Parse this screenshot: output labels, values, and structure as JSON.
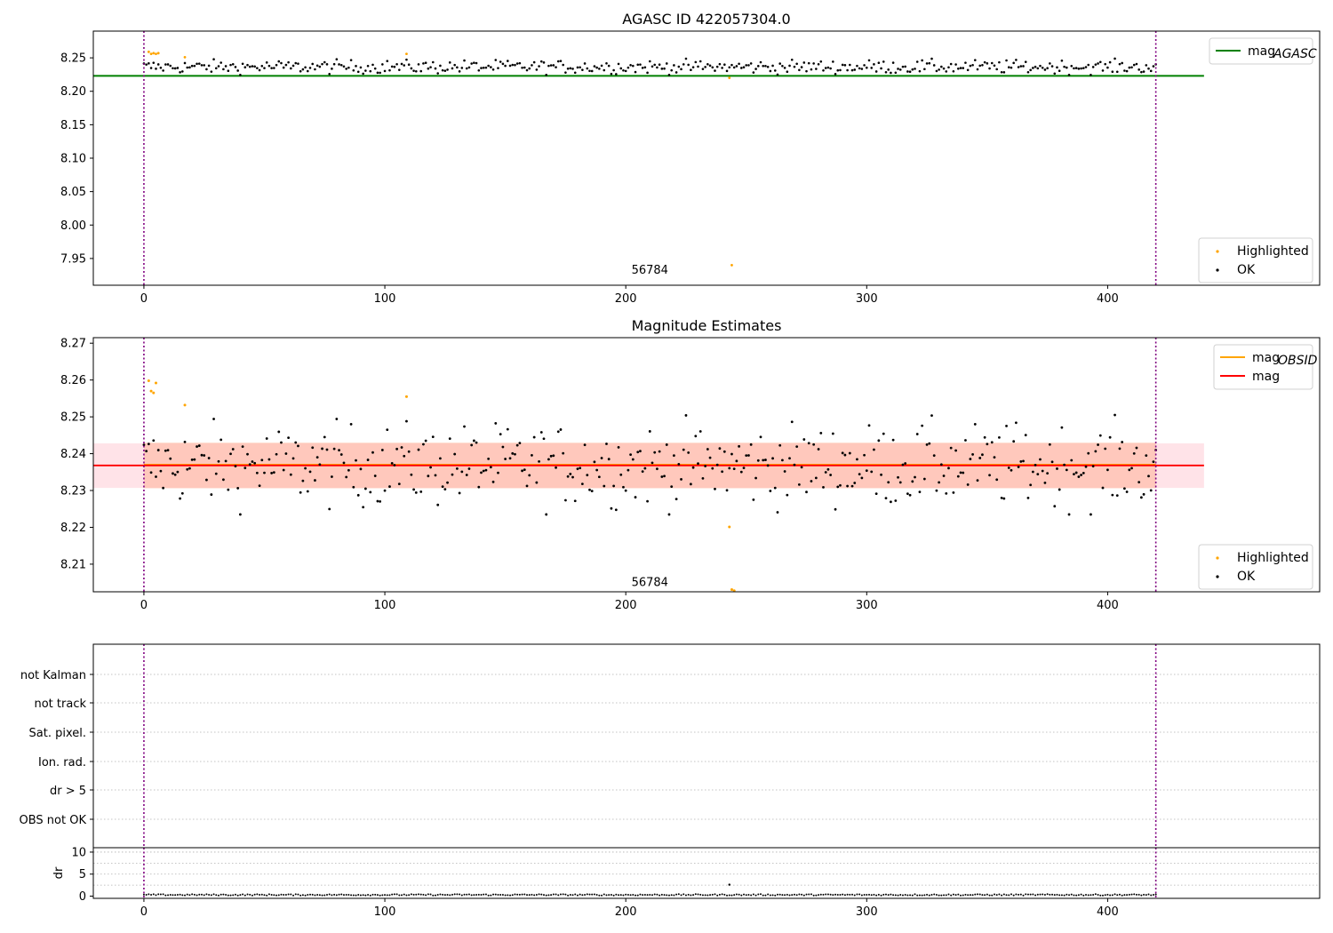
{
  "chart_data": [
    {
      "type": "scatter",
      "title": "AGASC ID 422057304.0",
      "xlim": [
        -21,
        488
      ],
      "ylim": [
        7.91,
        8.29
      ],
      "xticks": [
        0,
        100,
        200,
        300,
        400
      ],
      "xtick_labels": [
        "0",
        "100",
        "200",
        "300",
        "400"
      ],
      "yticks": [
        7.95,
        8.0,
        8.05,
        8.1,
        8.15,
        8.2,
        8.25
      ],
      "ytick_labels": [
        "7.95",
        "8.00",
        "8.05",
        "8.10",
        "8.15",
        "8.20",
        "8.25"
      ],
      "mag_agasc": 8.223,
      "vlines": [
        0,
        420
      ],
      "annotation": {
        "text": "56784",
        "x": 210,
        "y": 7.93
      },
      "highlighted": [
        [
          2,
          8.259
        ],
        [
          3,
          8.256
        ],
        [
          4,
          8.257
        ],
        [
          5,
          8.256
        ],
        [
          6,
          8.257
        ],
        [
          17,
          8.251
        ],
        [
          109,
          8.256
        ],
        [
          243,
          8.22
        ],
        [
          244,
          7.94
        ]
      ],
      "legends": [
        {
          "position": "upper right",
          "entries": [
            {
              "label": "mag",
              "sub": "AGASC",
              "color": "#008000",
              "kind": "line"
            }
          ]
        },
        {
          "position": "lower right",
          "entries": [
            {
              "label": "Highlighted",
              "color": "#ffa500",
              "kind": "marker"
            },
            {
              "label": "OK",
              "color": "#000000",
              "kind": "marker"
            }
          ]
        }
      ]
    },
    {
      "type": "scatter",
      "title": "Magnitude Estimates",
      "xlim": [
        -21,
        488
      ],
      "ylim": [
        8.2025,
        8.2715
      ],
      "xticks": [
        0,
        100,
        200,
        300,
        400
      ],
      "xtick_labels": [
        "0",
        "100",
        "200",
        "300",
        "400"
      ],
      "yticks": [
        8.21,
        8.22,
        8.23,
        8.24,
        8.25,
        8.26,
        8.27
      ],
      "ytick_labels": [
        "8.21",
        "8.22",
        "8.23",
        "8.24",
        "8.25",
        "8.26",
        "8.27"
      ],
      "mag": 8.2368,
      "mag_band": [
        8.2307,
        8.2428
      ],
      "mag_obsid": 8.237,
      "vlines": [
        0,
        420
      ],
      "annotation": {
        "text": "56784",
        "x": 210,
        "y": 8.2045
      },
      "highlighted": [
        [
          2,
          8.2598
        ],
        [
          3,
          8.257
        ],
        [
          4,
          8.2565
        ],
        [
          5,
          8.2592
        ],
        [
          17,
          8.2532
        ],
        [
          109,
          8.2555
        ],
        [
          243,
          8.2201
        ],
        [
          244,
          8.2031
        ],
        [
          245,
          8.2028
        ]
      ],
      "legends": [
        {
          "position": "upper right",
          "entries": [
            {
              "label": "mag",
              "sub": "OBSID",
              "color": "#ffa500",
              "kind": "line"
            },
            {
              "label": "mag",
              "sub": "",
              "color": "#ff0000",
              "kind": "line"
            }
          ]
        },
        {
          "position": "lower right",
          "entries": [
            {
              "label": "Highlighted",
              "color": "#ffa500",
              "kind": "marker"
            },
            {
              "label": "OK",
              "color": "#000000",
              "kind": "marker"
            }
          ]
        }
      ]
    },
    {
      "type": "scatter",
      "title": "",
      "flag_rows": [
        "not Kalman",
        "not track",
        "Sat. pixel.",
        "Ion. rad.",
        "dr > 5",
        "OBS not OK"
      ],
      "xlim": [
        -21,
        488
      ],
      "vlines": [
        0,
        420
      ]
    },
    {
      "type": "scatter",
      "title": "",
      "ylabel": "dr",
      "xlim": [
        -21,
        488
      ],
      "ylim": [
        -0.5,
        11
      ],
      "xticks": [
        0,
        100,
        200,
        300,
        400
      ],
      "xtick_labels": [
        "0",
        "100",
        "200",
        "300",
        "400"
      ],
      "yticks": [
        0,
        5,
        10
      ],
      "ytick_labels": [
        "0",
        "5",
        "10"
      ],
      "vlines": [
        0,
        420
      ],
      "outliers": [
        [
          243,
          2.6
        ]
      ]
    }
  ]
}
